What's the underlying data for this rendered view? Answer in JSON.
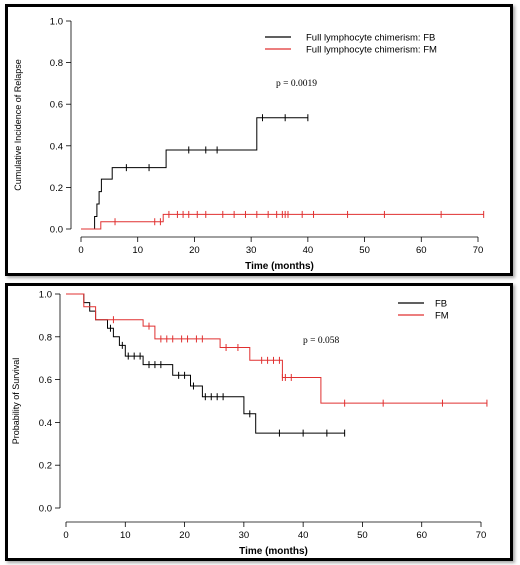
{
  "chart_data": [
    {
      "type": "line",
      "title": "",
      "xlabel": "Time (months)",
      "ylabel": "Cumulative Incidence of Relapse",
      "xlim": [
        0,
        70
      ],
      "ylim": [
        0,
        1.0
      ],
      "xticks": [
        "0",
        "10",
        "20",
        "30",
        "40",
        "50",
        "60",
        "70"
      ],
      "yticks": [
        "0.0",
        "0.2",
        "0.4",
        "0.6",
        "0.8",
        "1.0"
      ],
      "legend_position": "top-right",
      "annotation": "p = 0.0019",
      "series": [
        {
          "name": "Full lymphocyte chimerism: FB",
          "color": "#000000",
          "steps": [
            [
              0,
              0
            ],
            [
              2.4,
              0
            ],
            [
              2.4,
              0.06
            ],
            [
              2.8,
              0.06
            ],
            [
              2.8,
              0.12
            ],
            [
              3.2,
              0.12
            ],
            [
              3.2,
              0.18
            ],
            [
              3.6,
              0.18
            ],
            [
              3.6,
              0.24
            ],
            [
              5.5,
              0.24
            ],
            [
              5.5,
              0.295
            ],
            [
              15,
              0.295
            ],
            [
              15,
              0.38
            ],
            [
              31,
              0.38
            ],
            [
              31,
              0.535
            ],
            [
              40,
              0.535
            ]
          ],
          "censor": [
            8,
            12,
            19,
            22,
            24,
            32,
            36,
            40
          ]
        },
        {
          "name": "Full lymphocyte chimerism: FM",
          "color": "#e03030",
          "steps": [
            [
              0,
              0
            ],
            [
              3.5,
              0
            ],
            [
              3.5,
              0.035
            ],
            [
              14.5,
              0.035
            ],
            [
              14.5,
              0.07
            ],
            [
              71,
              0.07
            ]
          ],
          "censor": [
            6,
            13,
            14,
            15.5,
            17,
            18,
            19,
            20.5,
            22,
            25,
            27,
            29,
            31,
            33,
            34.5,
            35.5,
            36,
            36.5,
            39,
            41,
            47,
            53.5,
            63.5,
            71
          ]
        }
      ]
    },
    {
      "type": "line",
      "title": "",
      "xlabel": "Time (months)",
      "ylabel": "Probability of Survival",
      "xlim": [
        0,
        70
      ],
      "ylim": [
        0,
        1.0
      ],
      "xticks": [
        "0",
        "10",
        "20",
        "30",
        "40",
        "50",
        "60",
        "70"
      ],
      "yticks": [
        "0.0",
        "0.2",
        "0.4",
        "0.6",
        "0.8",
        "1.0"
      ],
      "legend_position": "top-right",
      "annotation": "p = 0.058",
      "series": [
        {
          "name": "FB",
          "color": "#000000",
          "steps": [
            [
              0,
              1.0
            ],
            [
              3,
              1.0
            ],
            [
              3,
              0.96
            ],
            [
              4,
              0.96
            ],
            [
              4,
              0.92
            ],
            [
              5,
              0.92
            ],
            [
              5,
              0.88
            ],
            [
              7,
              0.88
            ],
            [
              7,
              0.84
            ],
            [
              8,
              0.84
            ],
            [
              8,
              0.8
            ],
            [
              9,
              0.8
            ],
            [
              9,
              0.76
            ],
            [
              10,
              0.76
            ],
            [
              10,
              0.71
            ],
            [
              13,
              0.71
            ],
            [
              13,
              0.67
            ],
            [
              18,
              0.67
            ],
            [
              18,
              0.62
            ],
            [
              21,
              0.62
            ],
            [
              21,
              0.57
            ],
            [
              23,
              0.57
            ],
            [
              23,
              0.52
            ],
            [
              27,
              0.52
            ],
            [
              27,
              0.52
            ],
            [
              30,
              0.52
            ],
            [
              30,
              0.44
            ],
            [
              32,
              0.44
            ],
            [
              32,
              0.35
            ],
            [
              47,
              0.35
            ]
          ],
          "censor": [
            7.5,
            9.5,
            10.5,
            11.5,
            12.5,
            14,
            15,
            16,
            19,
            20,
            21.5,
            23.5,
            24.5,
            25.5,
            26.5,
            31,
            36,
            40,
            44,
            47
          ]
        },
        {
          "name": "FM",
          "color": "#e03030",
          "steps": [
            [
              0,
              1.0
            ],
            [
              3,
              1.0
            ],
            [
              3,
              0.94
            ],
            [
              5,
              0.94
            ],
            [
              5,
              0.88
            ],
            [
              13,
              0.88
            ],
            [
              13,
              0.85
            ],
            [
              15,
              0.85
            ],
            [
              15,
              0.79
            ],
            [
              26,
              0.79
            ],
            [
              26,
              0.75
            ],
            [
              31,
              0.75
            ],
            [
              31,
              0.69
            ],
            [
              36.5,
              0.69
            ],
            [
              36.5,
              0.61
            ],
            [
              43,
              0.61
            ],
            [
              43,
              0.49
            ],
            [
              71,
              0.49
            ]
          ],
          "censor": [
            8,
            14,
            16,
            17,
            18,
            19.5,
            20.5,
            22,
            23,
            27,
            29,
            33,
            34,
            35,
            36,
            36.5,
            37,
            38,
            47,
            53.5,
            63.5,
            71
          ]
        }
      ]
    }
  ]
}
